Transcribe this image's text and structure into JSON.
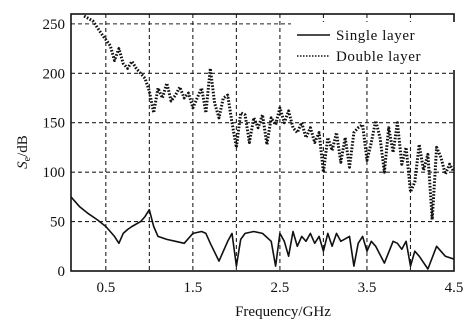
{
  "chart_data": {
    "type": "line",
    "xlabel": "Frequency/GHz",
    "ylabel": {
      "main": "S",
      "sub": "e",
      "unit": "/dB"
    },
    "xlim": [
      0.1,
      4.5
    ],
    "ylim": [
      0,
      260
    ],
    "xticks": [
      0.5,
      1.5,
      2.5,
      3.5,
      4.5
    ],
    "xtick_labels": [
      "0.5",
      "1.5",
      "2.5",
      "3.5",
      "4.5"
    ],
    "yticks": [
      0,
      50,
      100,
      150,
      200,
      250
    ],
    "ytick_labels": [
      "0",
      "50",
      "100",
      "150",
      "200",
      "250"
    ],
    "xgrid": [
      0.5,
      1.0,
      1.5,
      2.0,
      2.5,
      3.0,
      3.5,
      4.0
    ],
    "grid": true,
    "grid_style": "dashed",
    "legend_position": "top-right",
    "series": [
      {
        "name": "Single layer",
        "style": "solid",
        "color": "#111111",
        "x": [
          0.1,
          0.2,
          0.3,
          0.4,
          0.5,
          0.6,
          0.65,
          0.7,
          0.75,
          0.8,
          0.9,
          0.95,
          1.0,
          1.05,
          1.1,
          1.2,
          1.3,
          1.4,
          1.5,
          1.6,
          1.65,
          1.7,
          1.8,
          1.9,
          1.95,
          2.0,
          2.05,
          2.1,
          2.2,
          2.3,
          2.4,
          2.45,
          2.5,
          2.55,
          2.6,
          2.65,
          2.7,
          2.75,
          2.8,
          2.85,
          2.9,
          2.95,
          3.0,
          3.05,
          3.1,
          3.15,
          3.2,
          3.3,
          3.35,
          3.4,
          3.45,
          3.5,
          3.55,
          3.6,
          3.7,
          3.8,
          3.85,
          3.9,
          3.95,
          4.0,
          4.05,
          4.1,
          4.2,
          4.3,
          4.35,
          4.4,
          4.5
        ],
        "y": [
          75,
          65,
          58,
          52,
          45,
          35,
          28,
          38,
          42,
          45,
          50,
          55,
          62,
          45,
          35,
          32,
          30,
          28,
          38,
          40,
          38,
          28,
          10,
          30,
          38,
          5,
          32,
          38,
          40,
          38,
          30,
          5,
          38,
          30,
          15,
          40,
          25,
          35,
          30,
          38,
          28,
          35,
          20,
          38,
          25,
          38,
          30,
          35,
          5,
          28,
          35,
          20,
          30,
          25,
          8,
          30,
          28,
          22,
          30,
          5,
          20,
          15,
          2,
          25,
          20,
          15,
          12
        ]
      },
      {
        "name": "Double layer",
        "style": "dotted",
        "color": "#111111",
        "x": [
          0.25,
          0.35,
          0.45,
          0.55,
          0.6,
          0.65,
          0.7,
          0.75,
          0.8,
          0.85,
          0.9,
          0.95,
          1.0,
          1.05,
          1.1,
          1.15,
          1.2,
          1.25,
          1.3,
          1.35,
          1.4,
          1.45,
          1.5,
          1.55,
          1.6,
          1.65,
          1.7,
          1.75,
          1.8,
          1.85,
          1.9,
          1.95,
          2.0,
          2.05,
          2.1,
          2.15,
          2.2,
          2.25,
          2.3,
          2.35,
          2.4,
          2.45,
          2.5,
          2.55,
          2.6,
          2.65,
          2.7,
          2.75,
          2.8,
          2.85,
          2.9,
          2.95,
          3.0,
          3.05,
          3.1,
          3.15,
          3.2,
          3.25,
          3.3,
          3.35,
          3.4,
          3.45,
          3.5,
          3.55,
          3.6,
          3.65,
          3.7,
          3.75,
          3.8,
          3.85,
          3.9,
          3.95,
          4.0,
          4.05,
          4.1,
          4.15,
          4.2,
          4.25,
          4.3,
          4.35,
          4.4,
          4.45,
          4.5
        ],
        "y": [
          258,
          253,
          240,
          228,
          213,
          225,
          210,
          205,
          212,
          205,
          200,
          195,
          182,
          160,
          185,
          175,
          190,
          172,
          178,
          186,
          175,
          180,
          165,
          175,
          185,
          160,
          205,
          170,
          155,
          175,
          178,
          150,
          125,
          160,
          158,
          130,
          155,
          145,
          158,
          128,
          155,
          148,
          165,
          150,
          162,
          145,
          140,
          150,
          135,
          145,
          130,
          140,
          100,
          135,
          122,
          140,
          110,
          135,
          105,
          140,
          145,
          148,
          112,
          130,
          152,
          135,
          100,
          145,
          120,
          150,
          108,
          125,
          80,
          90,
          128,
          102,
          118,
          52,
          125,
          115,
          98,
          108,
          100
        ]
      }
    ]
  }
}
